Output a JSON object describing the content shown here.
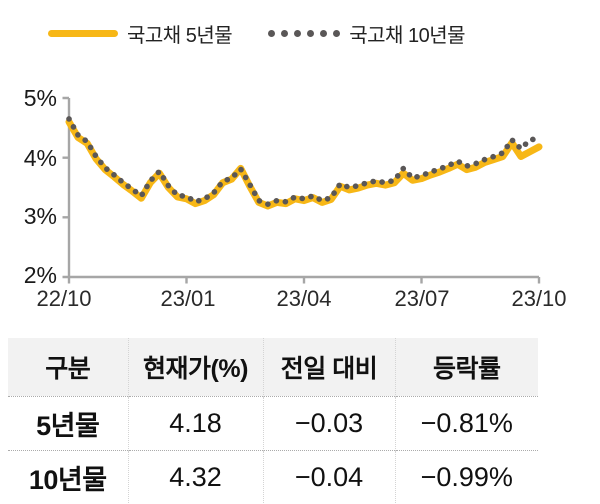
{
  "colors": {
    "series_5y": "#F7B716",
    "series_10y": "#5A5757",
    "axis": "#A6A6A6",
    "table_header_bg": "#F2F2F2",
    "table_border": "#ABABAB",
    "text": "#111111"
  },
  "chart_data": {
    "type": "line",
    "x_tick_labels": [
      "22/10",
      "23/01",
      "23/04",
      "23/07",
      "23/10"
    ],
    "y_tick_labels": [
      "5%",
      "4%",
      "3%",
      "2%"
    ],
    "ylim": [
      2,
      5
    ],
    "y_unit": "%",
    "grid": false,
    "legend_position": "top",
    "series": [
      {
        "name": "국고채 5년물",
        "style": "solid",
        "color": "#F7B716",
        "values": [
          4.6,
          4.34,
          4.24,
          3.98,
          3.8,
          3.68,
          3.55,
          3.44,
          3.32,
          3.58,
          3.74,
          3.5,
          3.34,
          3.31,
          3.23,
          3.28,
          3.38,
          3.58,
          3.64,
          3.82,
          3.52,
          3.25,
          3.19,
          3.25,
          3.23,
          3.31,
          3.28,
          3.33,
          3.25,
          3.3,
          3.52,
          3.46,
          3.49,
          3.54,
          3.57,
          3.54,
          3.58,
          3.74,
          3.62,
          3.65,
          3.71,
          3.76,
          3.82,
          3.89,
          3.8,
          3.84,
          3.92,
          3.97,
          4.02,
          4.25,
          4.02,
          4.1,
          4.18
        ]
      },
      {
        "name": "국고채 10년물",
        "style": "dotted",
        "color": "#5A5757",
        "values": [
          4.65,
          4.38,
          4.27,
          4.02,
          3.83,
          3.71,
          3.58,
          3.47,
          3.36,
          3.61,
          3.77,
          3.53,
          3.37,
          3.35,
          3.26,
          3.31,
          3.41,
          3.6,
          3.66,
          3.81,
          3.55,
          3.28,
          3.22,
          3.28,
          3.26,
          3.34,
          3.31,
          3.36,
          3.28,
          3.33,
          3.56,
          3.5,
          3.53,
          3.58,
          3.61,
          3.58,
          3.62,
          3.82,
          3.66,
          3.7,
          3.76,
          3.81,
          3.87,
          3.94,
          3.86,
          3.9,
          3.97,
          4.02,
          4.08,
          4.3,
          4.15,
          4.3,
          4.32
        ]
      }
    ]
  },
  "table": {
    "headers": [
      "구분",
      "현재가(%)",
      "전일 대비",
      "등락률"
    ],
    "rows": [
      [
        "5년물",
        "4.18",
        "−0.03",
        "−0.81%"
      ],
      [
        "10년물",
        "4.32",
        "−0.04",
        "−0.99%"
      ]
    ]
  }
}
